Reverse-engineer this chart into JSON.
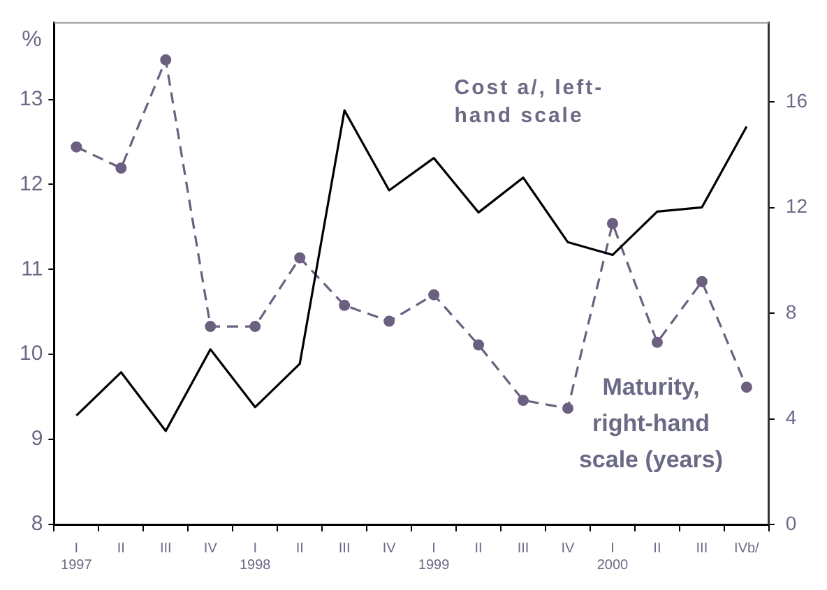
{
  "chart_data": {
    "type": "line",
    "ylabel": "%",
    "categories": [
      "I\n1997",
      "II",
      "III",
      "IV",
      "I\n1998",
      "II",
      "III",
      "IV",
      "I\n1999",
      "II",
      "III",
      "IV",
      "I\n2000",
      "II",
      "III",
      "IVb/"
    ],
    "series": [
      {
        "name": "Cost a/, left-hand scale",
        "color": "#000000",
        "marker": "none",
        "line_style": "solid",
        "values": [
          9.28,
          9.79,
          9.1,
          10.06,
          9.38,
          9.89,
          12.87,
          11.93,
          12.31,
          11.67,
          12.08,
          11.32,
          11.17,
          11.68,
          11.73,
          12.68
        ]
      },
      {
        "name": "Maturity, right-hand scale (years)",
        "color": "#6b6080",
        "axis": "y2",
        "marker": "circle",
        "line_style": "dashed",
        "values": [
          14.3,
          13.5,
          17.6,
          7.5,
          7.5,
          10.1,
          8.3,
          7.7,
          8.7,
          6.8,
          4.7,
          4.4,
          11.4,
          6.9,
          9.2,
          5.2
        ]
      }
    ],
    "ylim": [
      8,
      13.9
    ],
    "yticks": [
      8,
      9,
      10,
      11,
      12,
      13
    ],
    "y2lim": [
      0,
      19
    ],
    "y2ticks": [
      0,
      4,
      8,
      12,
      16
    ],
    "grid": false,
    "legend": false
  }
}
